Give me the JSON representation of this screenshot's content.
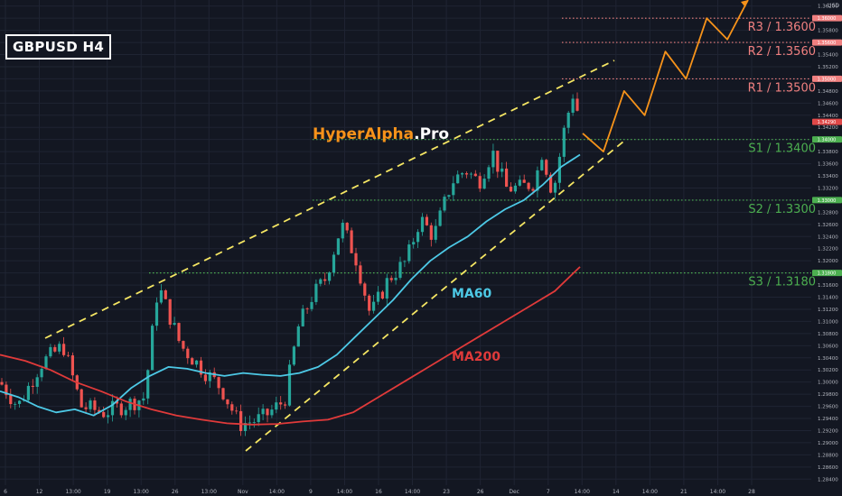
{
  "symbol": "GBPUSD H4",
  "currency": "USD",
  "brand": {
    "part1": "HyperAlpha",
    "part2": ".Pro",
    "color1": "#f7931a",
    "color2": "#ffffff"
  },
  "chart_data": {
    "type": "candlestick",
    "title": "GBPUSD H4",
    "y_ticks": [
      1.284,
      1.286,
      1.288,
      1.29,
      1.292,
      1.294,
      1.296,
      1.298,
      1.3,
      1.302,
      1.304,
      1.306,
      1.308,
      1.31,
      1.312,
      1.314,
      1.316,
      1.318,
      1.32,
      1.322,
      1.324,
      1.326,
      1.328,
      1.33,
      1.332,
      1.334,
      1.336,
      1.338,
      1.34,
      1.342,
      1.344,
      1.346,
      1.348,
      1.35,
      1.352,
      1.354,
      1.356,
      1.358,
      1.36,
      1.362
    ],
    "ylim": [
      1.283,
      1.363
    ],
    "x_ticks": [
      "6",
      "12",
      "13:00",
      "19",
      "13:00",
      "26",
      "13:00",
      "Nov",
      "14:00",
      "9",
      "14:00",
      "16",
      "14:00",
      "23",
      "26",
      "Dec",
      "7",
      "14:00",
      "14",
      "14:00",
      "21",
      "14:00",
      "28"
    ],
    "levels": [
      {
        "label": "R3 / 1.3600",
        "value": 1.36,
        "color": "#f08080",
        "type": "resistance"
      },
      {
        "label": "R2 / 1.3560",
        "value": 1.356,
        "color": "#f08080",
        "type": "resistance"
      },
      {
        "label": "R1 / 1.3500",
        "value": 1.35,
        "color": "#f08080",
        "type": "resistance"
      },
      {
        "label": "S1 / 1.3400",
        "value": 1.34,
        "color": "#4caf50",
        "type": "support"
      },
      {
        "label": "S2 / 1.3300",
        "value": 1.33,
        "color": "#4caf50",
        "type": "support"
      },
      {
        "label": "S3 / 1.3180",
        "value": 1.318,
        "color": "#4caf50",
        "type": "support"
      }
    ],
    "last_price": 1.3429,
    "last_price_label": "1.34290",
    "series": [
      {
        "name": "MA60",
        "color": "#4dc9e6",
        "values": [
          1.2985,
          1.2975,
          1.296,
          1.295,
          1.2955,
          1.2945,
          1.2962,
          1.299,
          1.301,
          1.3025,
          1.3022,
          1.3015,
          1.301,
          1.3015,
          1.3012,
          1.301,
          1.3015,
          1.3025,
          1.3045,
          1.3075,
          1.3105,
          1.3135,
          1.317,
          1.32,
          1.3222,
          1.324,
          1.3265,
          1.3285,
          1.33,
          1.3325,
          1.3355,
          1.3375
        ]
      },
      {
        "name": "MA200",
        "color": "#e03a3a",
        "values": [
          1.3045,
          1.3035,
          1.302,
          1.3,
          1.2985,
          1.2968,
          1.2955,
          1.2945,
          1.2938,
          1.2932,
          1.293,
          1.2931,
          1.2935,
          1.2938,
          1.295,
          1.2975,
          1.3,
          1.3025,
          1.305,
          1.3075,
          1.31,
          1.3125,
          1.315,
          1.319
        ]
      }
    ],
    "projection": {
      "color": "#f7931a",
      "values": [
        1.341,
        1.338,
        1.348,
        1.344,
        1.3545,
        1.35,
        1.36,
        1.3565,
        1.363
      ]
    }
  }
}
